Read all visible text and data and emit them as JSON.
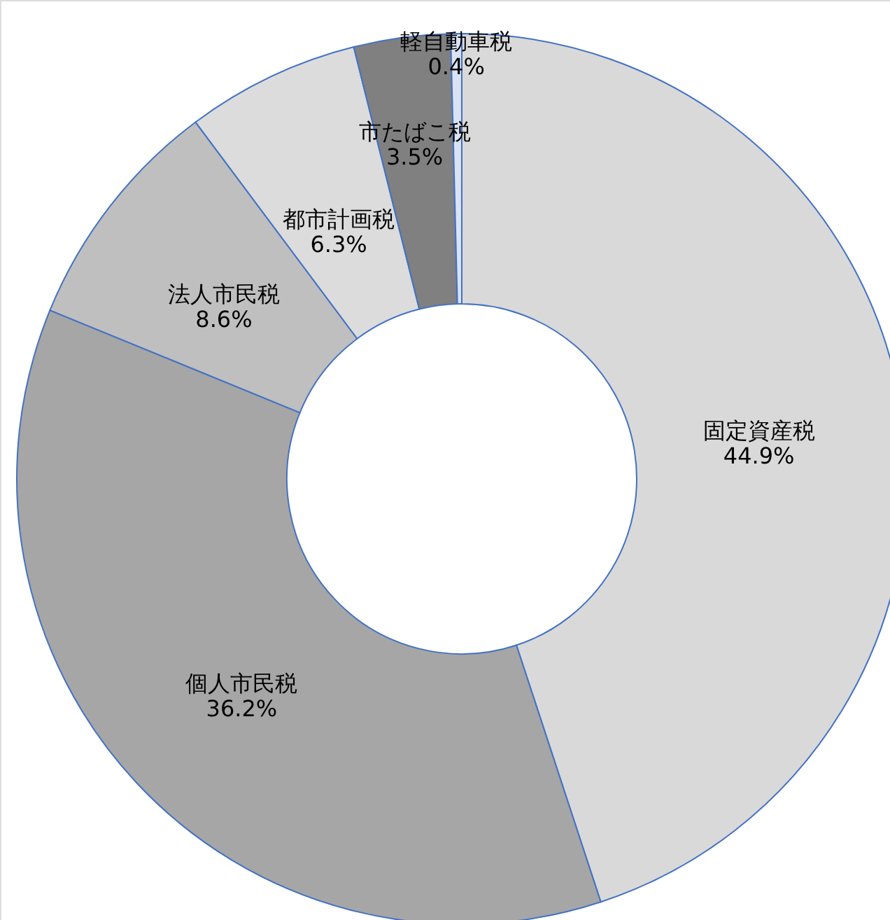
{
  "chart_data": {
    "type": "donut",
    "categories": [
      "固定資産税",
      "個人市民税",
      "法人市民税",
      "都市計画税",
      "市たばこ税",
      "軽自動車税"
    ],
    "values": [
      44.9,
      36.2,
      8.6,
      6.3,
      3.5,
      0.4
    ],
    "value_labels": [
      "44.9%",
      "36.2%",
      "8.6%",
      "6.3%",
      "3.5%",
      "0.4%"
    ],
    "colors": [
      "#d9d9d9",
      "#a6a6a6",
      "#bfbfbf",
      "#dcdcdc",
      "#808080",
      "#dae3f3"
    ]
  }
}
